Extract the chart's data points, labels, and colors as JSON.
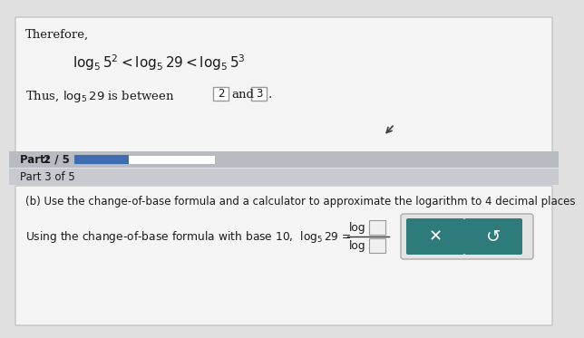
{
  "bg_color": "#e0e0e0",
  "top_panel_bg": "#f5f5f5",
  "therefore_text": "Therefore,",
  "thus_text": "Thus, log",
  "progress_bar_label": "Part: 2 / 5",
  "progress_bar_color": "#3d6db0",
  "progress_bar_bg": "#ffffff",
  "progress_strip_bg": "#b8bcc2",
  "part_strip_bg": "#c8cacf",
  "part_label_text": "Part 3 of 5",
  "bottom_panel_bg": "#f5f5f5",
  "bottom_text_b": "(b) Use the change-of-base formula and a calculator to approximate the logarithm to 4 decimal places",
  "bottom_formula_text": "Using the change-of-base formula with base 10,  log",
  "button_color": "#2d7b7b",
  "button_border_bg": "#dcdcdc",
  "text_color": "#1a1a1a",
  "box_border_color": "#999999",
  "log_box_bg": "#f0f0f0"
}
